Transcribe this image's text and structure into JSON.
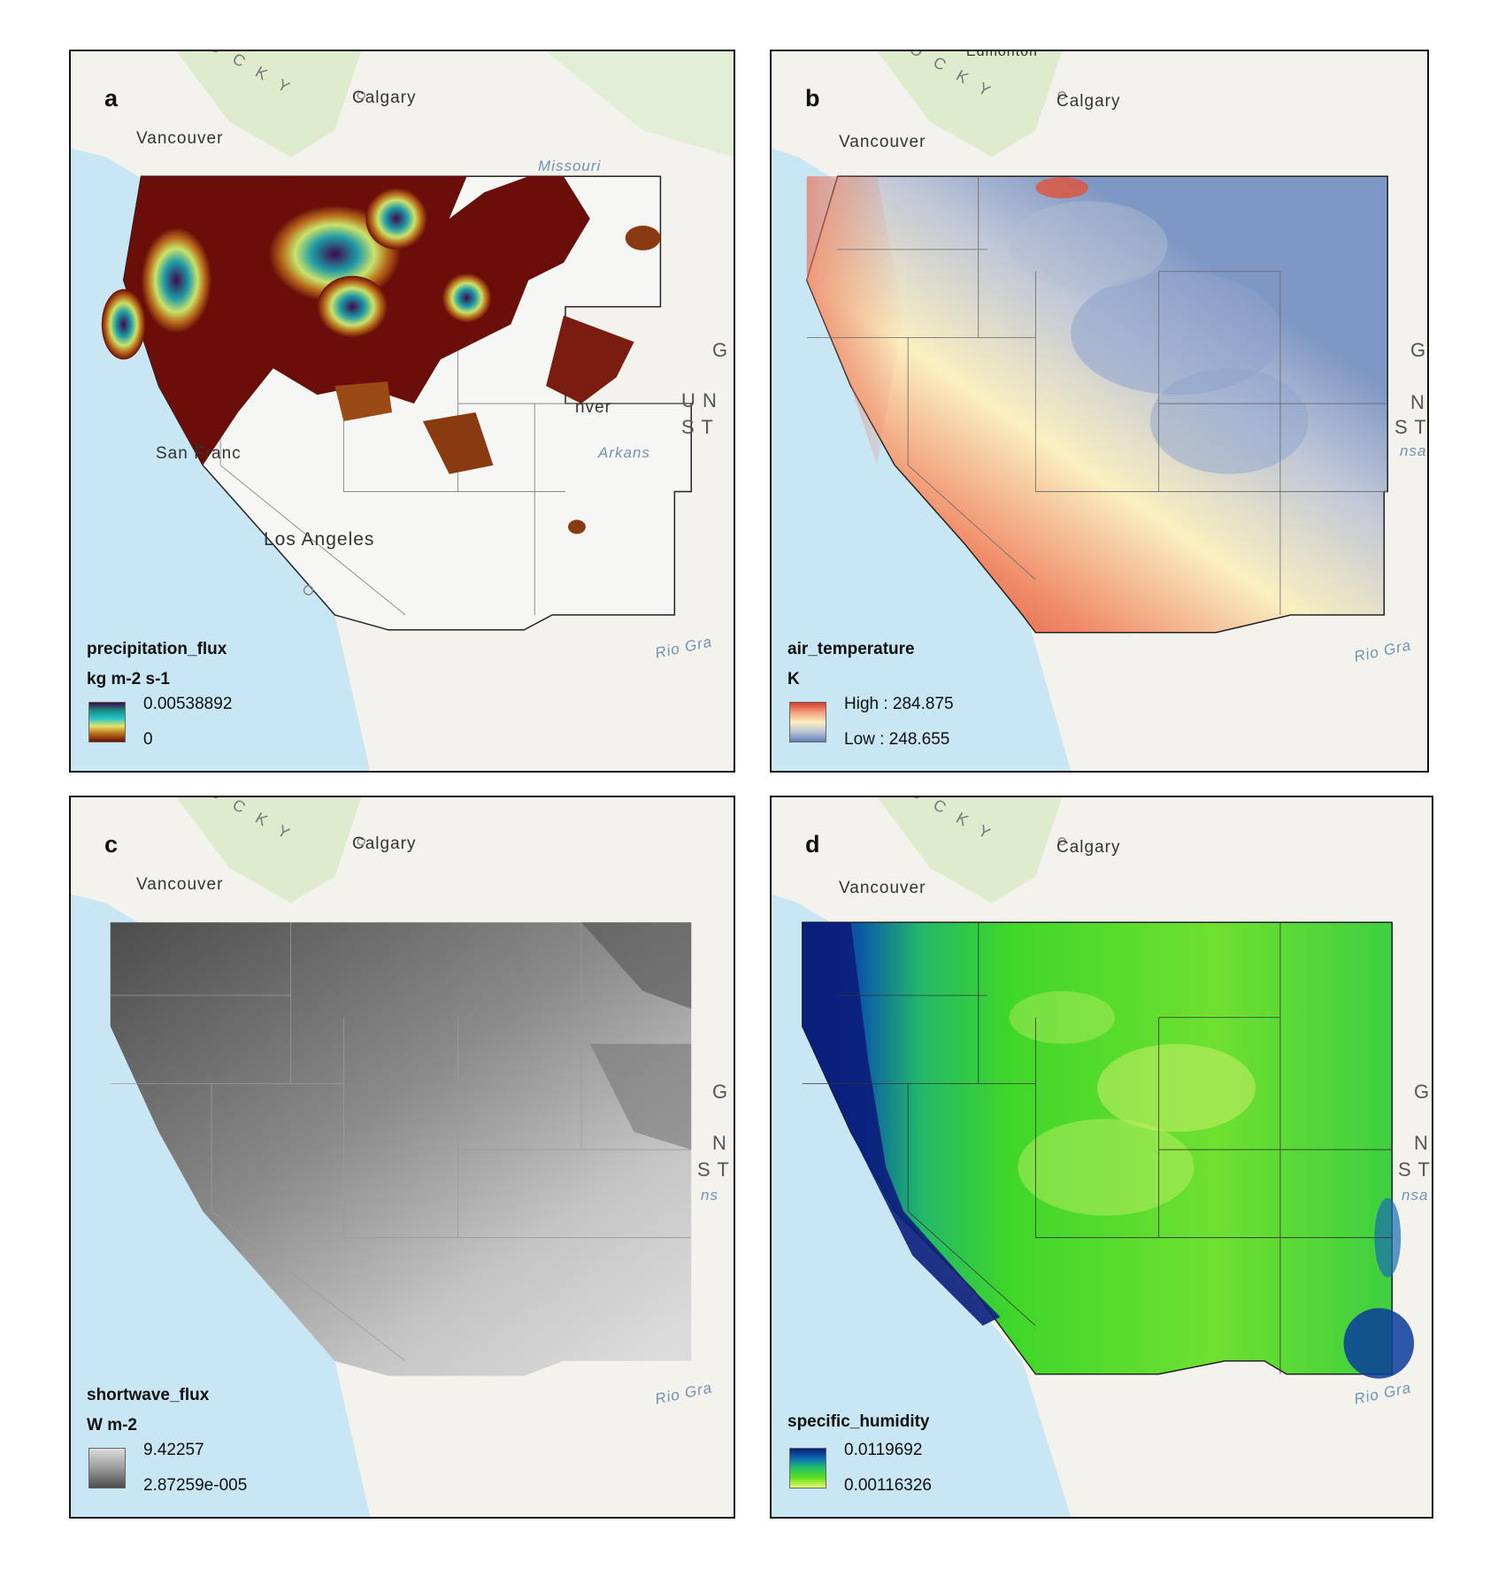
{
  "panels": {
    "a": {
      "letter": "a",
      "legend_title": "precipitation_flux",
      "unit": "kg m-2 s-1",
      "high": "0.00538892",
      "low": "0",
      "ramp": [
        "#3e0a4d",
        "#1a8c80",
        "#21c3cc",
        "#e3e56a",
        "#b86b1a",
        "#6b0e0a"
      ]
    },
    "b": {
      "letter": "b",
      "legend_title": "air_temperature",
      "unit": "K",
      "high": "High : 284.875",
      "low": "Low : 248.655",
      "ramp": [
        "#d7382b",
        "#f3a07c",
        "#faefc0",
        "#b8c3d6",
        "#5f7fb8"
      ]
    },
    "c": {
      "letter": "c",
      "legend_title": "shortwave_flux",
      "unit": "W m-2",
      "high": "9.42257",
      "low": "2.87259e-005",
      "ramp": [
        "#dcdcdc",
        "#9a9a9a",
        "#4c4c4c"
      ]
    },
    "d": {
      "letter": "d",
      "legend_title": "specific_humidity",
      "unit": "",
      "high": "0.0119692",
      "low": "0.00116326",
      "ramp": [
        "#0b1d7a",
        "#0b6ab0",
        "#22c26a",
        "#5fe01b",
        "#e9f870"
      ]
    }
  },
  "basemap": {
    "cities": [
      "Calgary",
      "Vancouver",
      "San Francisco",
      "Los Angeles",
      "Denver"
    ],
    "visible_labels": {
      "a": [
        "Calgary",
        "Vancouver",
        "San Franc",
        "Los Angeles",
        "nver",
        "Missouri",
        "Arkans",
        "Rio Gra",
        "G",
        "U N",
        "S T",
        "O C K Y"
      ],
      "b": [
        "Edmonton",
        "Calgary",
        "Vancouver",
        "G",
        "N",
        "S T",
        "nsa",
        "Rio Gra",
        "O C K Y"
      ],
      "c": [
        "Calgary",
        "Vancouver",
        "G",
        "N",
        "S T",
        "ns",
        "Rio Gra",
        "O C K Y"
      ],
      "d": [
        "Calgary",
        "Vancouver",
        "G",
        "N",
        "S T",
        "nsa",
        "Rio Gra",
        "O C K Y"
      ]
    },
    "colors": {
      "ocean": "#c8e6f3",
      "land": "#f4f2ed",
      "land_green": "#d9e8c4"
    }
  }
}
